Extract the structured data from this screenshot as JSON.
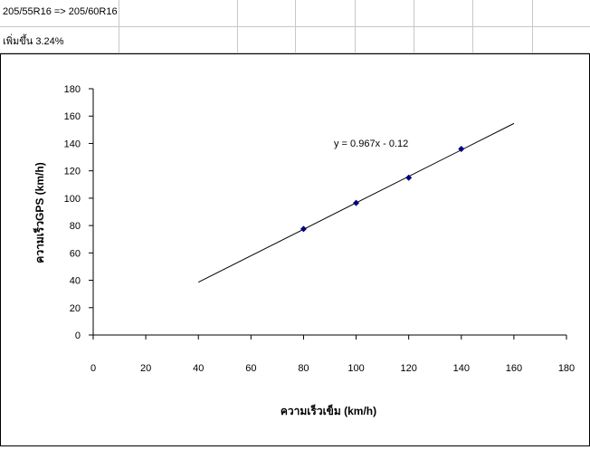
{
  "sheet": {
    "a1": "205/55R16 => 205/60R16",
    "a2": "เพิ่มขึ้น 3.24%"
  },
  "chart_data": {
    "type": "scatter",
    "title": "",
    "xlabel": "ความเร็วเข็ม (km/h)",
    "ylabel": "ความเร็วGPS (km/h)",
    "xlim": [
      0,
      180
    ],
    "ylim": [
      0,
      180
    ],
    "xticks": [
      0,
      20,
      40,
      60,
      80,
      100,
      120,
      140,
      160,
      180
    ],
    "yticks": [
      0,
      20,
      40,
      60,
      80,
      100,
      120,
      140,
      160,
      180
    ],
    "grid": false,
    "legend": "none",
    "marker_color": "#000080",
    "series": [
      {
        "x": [
          80,
          100,
          120,
          140
        ],
        "y": [
          77.5,
          96.5,
          115,
          136
        ]
      }
    ],
    "trendline": {
      "type": "linear",
      "equation": "y = 0.967x - 0.12",
      "slope": 0.967,
      "intercept": -0.12,
      "x_range": [
        40,
        160
      ]
    }
  }
}
